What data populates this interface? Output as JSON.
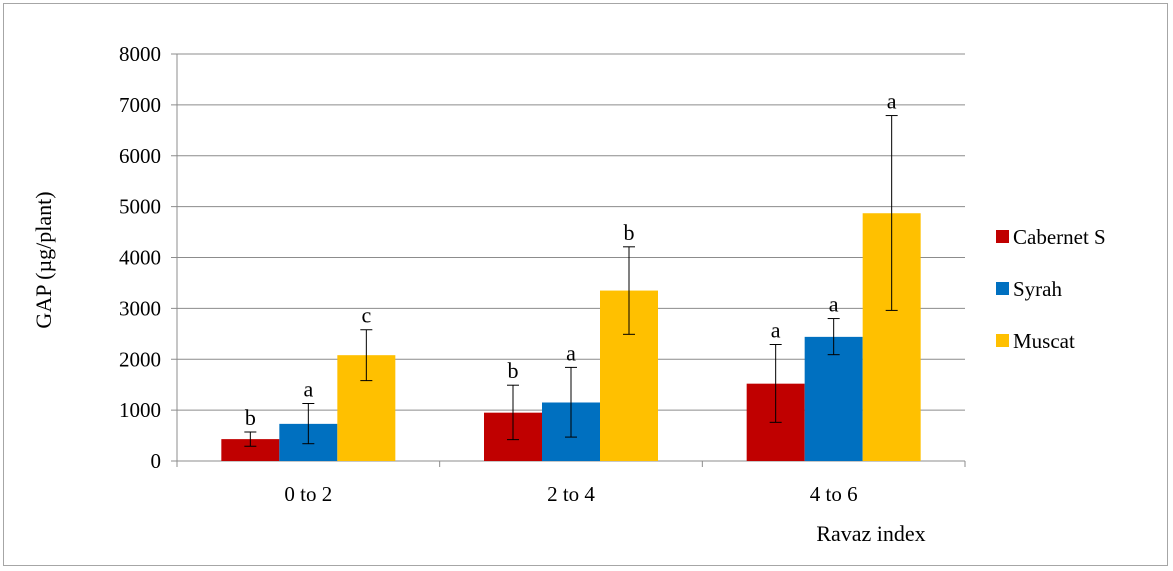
{
  "chart_data": {
    "type": "bar",
    "title": "",
    "xlabel": "Ravaz index",
    "ylabel": "GAP (µg/plant)",
    "ylim": [
      0,
      8000
    ],
    "yticks": [
      0,
      1000,
      2000,
      3000,
      4000,
      5000,
      6000,
      7000,
      8000
    ],
    "categories": [
      "0 to 2",
      "2 to 4",
      "4 to 6"
    ],
    "grid": true,
    "legend_position": "right",
    "series": [
      {
        "name": "Cabernet S",
        "color": "#c00000",
        "values": [
          430,
          950,
          1520
        ],
        "err_low": [
          290,
          420,
          760
        ],
        "err_high": [
          570,
          1490,
          2290
        ],
        "letters": [
          "b",
          "b",
          "a"
        ]
      },
      {
        "name": "Syrah",
        "color": "#0070c0",
        "values": [
          730,
          1150,
          2440
        ],
        "err_low": [
          340,
          470,
          2090
        ],
        "err_high": [
          1130,
          1840,
          2800
        ],
        "letters": [
          "a",
          "a",
          "a"
        ]
      },
      {
        "name": "Muscat",
        "color": "#ffc000",
        "values": [
          2080,
          3350,
          4870
        ],
        "err_low": [
          1580,
          2490,
          2960
        ],
        "err_high": [
          2580,
          4210,
          6790
        ],
        "letters": [
          "c",
          "b",
          "a"
        ]
      }
    ]
  }
}
